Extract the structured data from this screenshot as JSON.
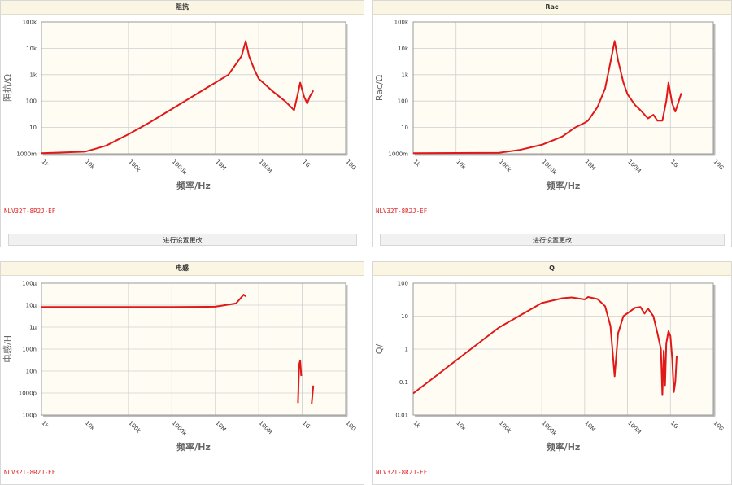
{
  "panels": [
    {
      "title": "阻抗",
      "model": "NLV32T-8R2J-EF",
      "button_label": "进行设置更改",
      "chart_data": {
        "type": "line",
        "title": "阻抗",
        "xlabel": "频率/Hz",
        "ylabel": "阻抗/Ω",
        "x_scale": "log",
        "y_scale": "log",
        "xlim": [
          1000,
          10000000000
        ],
        "ylim": [
          1,
          100000
        ],
        "x_ticks": [
          "1k",
          "10k",
          "100k",
          "1000k",
          "10M",
          "100M",
          "1G",
          "10G"
        ],
        "y_ticks": [
          "1000m",
          "10",
          "100",
          "1k",
          "10k",
          "100k"
        ],
        "grid": true,
        "series": [
          {
            "color": "#e01818",
            "points": [
              [
                1000,
                1.05
              ],
              [
                10000,
                1.2
              ],
              [
                30000,
                2.0
              ],
              [
                100000,
                5.5
              ],
              [
                300000,
                15
              ],
              [
                1000000,
                50
              ],
              [
                3000000,
                150
              ],
              [
                10000000,
                500
              ],
              [
                20000000,
                1000
              ],
              [
                40000000,
                5000
              ],
              [
                50000000,
                19000
              ],
              [
                60000000,
                5000
              ],
              [
                80000000,
                1500
              ],
              [
                100000000,
                700
              ],
              [
                200000000,
                250
              ],
              [
                400000000,
                100
              ],
              [
                650000000,
                45
              ],
              [
                800000000,
                200
              ],
              [
                900000000,
                500
              ],
              [
                1100000000,
                150
              ],
              [
                1300000000,
                80
              ],
              [
                1500000000,
                150
              ],
              [
                1800000000,
                250
              ]
            ]
          }
        ]
      }
    },
    {
      "title": "Rac",
      "model": "NLV32T-8R2J-EF",
      "button_label": "进行设置更改",
      "chart_data": {
        "type": "line",
        "title": "Rac",
        "xlabel": "频率/Hz",
        "ylabel": "Rac/Ω",
        "x_scale": "log",
        "y_scale": "log",
        "xlim": [
          1000,
          10000000000
        ],
        "ylim": [
          1,
          100000
        ],
        "x_ticks": [
          "1k",
          "10k",
          "100k",
          "1000k",
          "10M",
          "100M",
          "1G",
          "10G"
        ],
        "y_ticks": [
          "1000m",
          "10",
          "100",
          "1k",
          "10k",
          "100k"
        ],
        "grid": true,
        "series": [
          {
            "color": "#e01818",
            "points": [
              [
                1000,
                1.05
              ],
              [
                100000,
                1.1
              ],
              [
                300000,
                1.4
              ],
              [
                1000000,
                2.2
              ],
              [
                3000000,
                4.5
              ],
              [
                6000000,
                10
              ],
              [
                10000000,
                15
              ],
              [
                12000000,
                18
              ],
              [
                20000000,
                60
              ],
              [
                30000000,
                300
              ],
              [
                40000000,
                3000
              ],
              [
                50000000,
                19000
              ],
              [
                60000000,
                3500
              ],
              [
                80000000,
                500
              ],
              [
                100000000,
                180
              ],
              [
                150000000,
                70
              ],
              [
                200000000,
                45
              ],
              [
                300000000,
                22
              ],
              [
                400000000,
                30
              ],
              [
                500000000,
                18
              ],
              [
                650000000,
                18
              ],
              [
                800000000,
                100
              ],
              [
                900000000,
                500
              ],
              [
                1100000000,
                80
              ],
              [
                1300000000,
                40
              ],
              [
                1500000000,
                80
              ],
              [
                1800000000,
                200
              ]
            ]
          }
        ]
      }
    },
    {
      "title": "电感",
      "model": "NLV32T-8R2J-EF",
      "chart_data": {
        "type": "line",
        "title": "电感",
        "xlabel": "频率/Hz",
        "ylabel": "电感/H",
        "x_scale": "log",
        "y_scale": "log",
        "xlim": [
          1000,
          10000000000
        ],
        "ylim": [
          1e-10,
          0.0001
        ],
        "x_ticks": [
          "1k",
          "10k",
          "100k",
          "1000k",
          "10M",
          "100M",
          "1G",
          "10G"
        ],
        "y_ticks": [
          "100p",
          "1000p",
          "10n",
          "100n",
          "1μ",
          "10μ",
          "100μ"
        ],
        "grid": true,
        "series": [
          {
            "color": "#e01818",
            "points": [
              [
                1000,
                8.2e-06
              ],
              [
                10000,
                8.2e-06
              ],
              [
                100000,
                8.2e-06
              ],
              [
                1000000,
                8.2e-06
              ],
              [
                10000000,
                8.5e-06
              ],
              [
                30000000,
                1.2e-05
              ],
              [
                45000000,
                3e-05
              ],
              [
                50000000,
                2.5e-05
              ]
            ]
          },
          {
            "color": "#e01818",
            "points": [
              [
                800000000,
                3.5e-10
              ],
              [
                850000000,
                2e-08
              ],
              [
                900000000,
                3e-08
              ],
              [
                950000000,
                6e-09
              ]
            ]
          },
          {
            "color": "#e01818",
            "points": [
              [
                1650000000,
                3.3e-10
              ],
              [
                1800000000,
                2.2e-09
              ]
            ]
          }
        ]
      }
    },
    {
      "title": "Q",
      "model": "NLV32T-8R2J-EF",
      "chart_data": {
        "type": "line",
        "title": "Q",
        "xlabel": "频率/Hz",
        "ylabel": "Q/",
        "x_scale": "log",
        "y_scale": "log",
        "xlim": [
          1000,
          10000000000
        ],
        "ylim": [
          0.01,
          100
        ],
        "x_ticks": [
          "1k",
          "10k",
          "100k",
          "1000k",
          "10M",
          "100M",
          "1G",
          "10G"
        ],
        "y_ticks": [
          "0.01",
          "0.1",
          "1",
          "10",
          "100"
        ],
        "grid": true,
        "series": [
          {
            "color": "#e01818",
            "points": [
              [
                1000,
                0.045
              ],
              [
                10000,
                0.45
              ],
              [
                100000,
                4.5
              ],
              [
                1000000,
                25
              ],
              [
                3000000,
                35
              ],
              [
                5000000,
                37
              ],
              [
                10000000,
                32
              ],
              [
                12000000,
                38
              ],
              [
                20000000,
                33
              ],
              [
                30000000,
                20
              ],
              [
                40000000,
                5
              ],
              [
                50000000,
                0.15
              ],
              [
                60000000,
                3
              ],
              [
                80000000,
                10
              ],
              [
                150000000,
                18
              ],
              [
                200000000,
                19
              ],
              [
                250000000,
                12
              ],
              [
                300000000,
                17
              ],
              [
                400000000,
                10
              ],
              [
                500000000,
                3
              ],
              [
                600000000,
                1
              ],
              [
                650000000,
                0.04
              ],
              [
                700000000,
                0.9
              ],
              [
                750000000,
                0.08
              ],
              [
                800000000,
                1.5
              ],
              [
                900000000,
                3.5
              ],
              [
                1000000000,
                2.5
              ],
              [
                1100000000,
                0.5
              ],
              [
                1200000000,
                0.05
              ],
              [
                1300000000,
                0.1
              ],
              [
                1400000000,
                0.6
              ]
            ]
          }
        ]
      }
    }
  ]
}
